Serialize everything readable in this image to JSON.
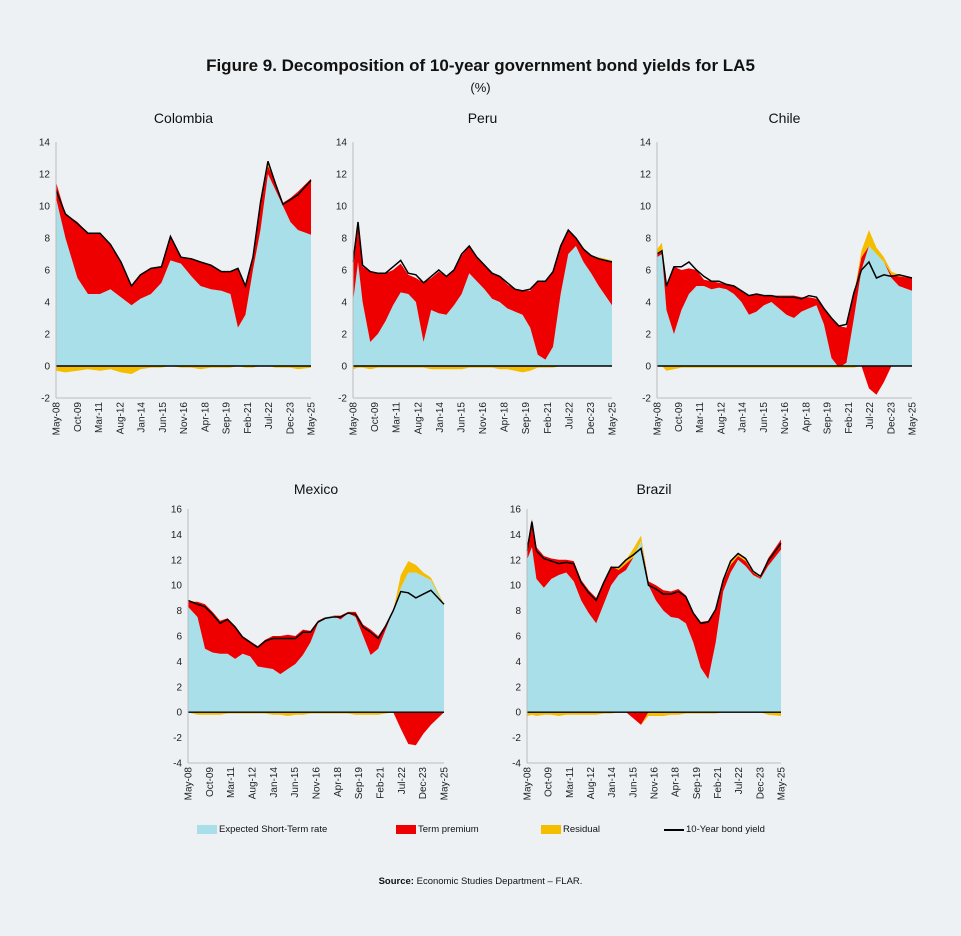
{
  "title": "Figure 9. Decomposition of 10-year government bond yields for LA5",
  "unit": "(%)",
  "legend": [
    {
      "label": "Expected Short-Term rate",
      "color": "#a8dfe9"
    },
    {
      "label": "Term premium",
      "color": "#ee0000"
    },
    {
      "label": "Residual",
      "color": "#f5bd00"
    },
    {
      "label": "10-Year bond yield",
      "color": "#000000"
    }
  ],
  "source_label": "Source:",
  "source_text": "Economic Studies Department – FLAR.",
  "chart_data": [
    {
      "type": "area",
      "title": "Colombia",
      "ylim": [
        -2,
        14
      ],
      "yticks": [
        -2,
        0,
        2,
        4,
        6,
        8,
        10,
        12,
        14
      ],
      "xticks": [
        "May-08",
        "Oct-09",
        "Mar-11",
        "Aug-12",
        "Jan-14",
        "Jun-15",
        "Nov-16",
        "Apr-18",
        "Sep-19",
        "Feb-21",
        "Jul-22",
        "Dec-23",
        "May-25"
      ],
      "x": [
        2008.37,
        2009.0,
        2009.8,
        2010.5,
        2011.3,
        2012.0,
        2012.7,
        2013.4,
        2014.0,
        2014.7,
        2015.4,
        2016.0,
        2016.7,
        2017.4,
        2018.0,
        2018.7,
        2019.4,
        2020.0,
        2020.5,
        2021.0,
        2021.5,
        2022.0,
        2022.5,
        2023.0,
        2023.5,
        2024.0,
        2024.5,
        2025.37
      ],
      "series": [
        {
          "name": "Expected Short-Term rate",
          "values": [
            10.5,
            8.0,
            5.5,
            4.5,
            4.5,
            4.8,
            4.3,
            3.8,
            4.2,
            4.5,
            5.2,
            6.6,
            6.4,
            5.6,
            5.0,
            4.8,
            4.7,
            4.5,
            2.4,
            3.2,
            6.0,
            8.5,
            12.0,
            11.0,
            10.0,
            9.0,
            8.5,
            8.2
          ]
        },
        {
          "name": "Term premium",
          "values": [
            1.0,
            1.5,
            3.5,
            3.8,
            3.8,
            2.8,
            2.2,
            1.2,
            1.5,
            1.6,
            1.0,
            1.5,
            0.4,
            1.1,
            1.5,
            1.5,
            1.2,
            1.4,
            3.7,
            1.8,
            0.8,
            1.7,
            0.5,
            0.5,
            0.2,
            1.5,
            2.4,
            3.5
          ]
        },
        {
          "name": "Residual",
          "values": [
            -0.3,
            -0.4,
            -0.3,
            -0.2,
            -0.3,
            -0.2,
            -0.4,
            -0.5,
            -0.2,
            -0.1,
            -0.1,
            0.0,
            -0.1,
            -0.1,
            -0.2,
            -0.1,
            -0.1,
            -0.1,
            0.0,
            -0.1,
            -0.1,
            0.0,
            0.3,
            -0.1,
            -0.1,
            -0.1,
            -0.2,
            -0.1
          ]
        },
        {
          "name": "10-Year bond yield",
          "values": [
            11.0,
            9.5,
            8.9,
            8.3,
            8.3,
            7.6,
            6.5,
            5.0,
            5.7,
            6.1,
            6.2,
            8.1,
            6.8,
            6.7,
            6.5,
            6.3,
            5.9,
            5.9,
            6.1,
            5.0,
            6.8,
            10.2,
            12.8,
            11.4,
            10.1,
            10.4,
            10.7,
            11.6
          ]
        }
      ]
    },
    {
      "type": "area",
      "title": "Peru",
      "ylim": [
        -2,
        14
      ],
      "yticks": [
        -2,
        0,
        2,
        4,
        6,
        8,
        10,
        12,
        14
      ],
      "xticks": [
        "May-08",
        "Oct-09",
        "Mar-11",
        "Aug-12",
        "Jan-14",
        "Jun-15",
        "Nov-16",
        "Apr-18",
        "Sep-19",
        "Feb-21",
        "Jul-22",
        "Dec-23",
        "May-25"
      ],
      "x": [
        2008.37,
        2008.7,
        2009.0,
        2009.5,
        2010.0,
        2010.5,
        2011.0,
        2011.5,
        2012.0,
        2012.5,
        2013.0,
        2013.5,
        2014.0,
        2014.5,
        2015.0,
        2015.5,
        2016.0,
        2016.5,
        2017.0,
        2017.5,
        2018.0,
        2018.5,
        2019.0,
        2019.5,
        2020.0,
        2020.5,
        2021.0,
        2021.5,
        2022.0,
        2022.5,
        2023.0,
        2023.5,
        2024.0,
        2024.5,
        2025.37
      ],
      "series": [
        {
          "name": "Expected Short-Term rate",
          "values": [
            4.0,
            6.5,
            4.0,
            1.5,
            2.0,
            2.8,
            3.8,
            4.6,
            4.5,
            4.0,
            1.5,
            3.5,
            3.3,
            3.2,
            3.8,
            4.5,
            5.8,
            5.3,
            4.8,
            4.2,
            4.0,
            3.6,
            3.4,
            3.2,
            2.4,
            0.7,
            0.4,
            1.2,
            4.5,
            7.0,
            7.5,
            6.5,
            5.8,
            5.0,
            3.8
          ]
        },
        {
          "name": "Term premium",
          "values": [
            2.5,
            2.5,
            2.2,
            4.4,
            3.8,
            3.0,
            2.2,
            1.8,
            1.2,
            1.5,
            3.7,
            2.0,
            2.6,
            2.4,
            2.2,
            2.4,
            1.7,
            1.5,
            1.5,
            1.6,
            1.6,
            1.5,
            1.4,
            1.5,
            2.3,
            4.6,
            4.9,
            4.7,
            3.0,
            1.5,
            0.5,
            0.8,
            1.1,
            1.7,
            2.7
          ]
        },
        {
          "name": "Residual",
          "values": [
            -0.2,
            -0.1,
            -0.1,
            -0.2,
            -0.1,
            -0.1,
            -0.1,
            -0.1,
            -0.1,
            -0.1,
            -0.1,
            -0.2,
            -0.2,
            -0.2,
            -0.2,
            -0.2,
            -0.1,
            -0.1,
            -0.1,
            -0.1,
            -0.2,
            -0.2,
            -0.3,
            -0.4,
            -0.3,
            -0.1,
            -0.1,
            -0.1,
            0.0,
            0.0,
            0.0,
            0.1,
            0.0,
            0.1,
            0.1
          ]
        },
        {
          "name": "10-Year bond yield",
          "values": [
            6.5,
            9.0,
            6.3,
            5.9,
            5.8,
            5.8,
            6.2,
            6.6,
            5.8,
            5.7,
            5.2,
            5.6,
            6.0,
            5.6,
            6.0,
            7.0,
            7.5,
            6.8,
            6.3,
            5.8,
            5.6,
            5.2,
            4.8,
            4.7,
            4.8,
            5.3,
            5.3,
            5.9,
            7.5,
            8.5,
            8.0,
            7.3,
            6.9,
            6.7,
            6.5
          ]
        }
      ]
    },
    {
      "type": "area",
      "title": "Chile",
      "ylim": [
        -2,
        14
      ],
      "yticks": [
        -2,
        0,
        2,
        4,
        6,
        8,
        10,
        12,
        14
      ],
      "xticks": [
        "May-08",
        "Oct-09",
        "Mar-11",
        "Aug-12",
        "Jan-14",
        "Jun-15",
        "Nov-16",
        "Apr-18",
        "Sep-19",
        "Feb-21",
        "Jul-22",
        "Dec-23",
        "May-25"
      ],
      "x": [
        2008.37,
        2008.7,
        2009.0,
        2009.5,
        2010.0,
        2010.5,
        2011.0,
        2011.5,
        2012.0,
        2012.5,
        2013.0,
        2013.5,
        2014.0,
        2014.5,
        2015.0,
        2015.5,
        2016.0,
        2016.5,
        2017.0,
        2017.5,
        2018.0,
        2018.5,
        2019.0,
        2019.5,
        2020.0,
        2020.5,
        2021.0,
        2021.5,
        2022.0,
        2022.5,
        2023.0,
        2023.5,
        2024.0,
        2024.5,
        2025.37
      ],
      "series": [
        {
          "name": "Expected Short-Term rate",
          "values": [
            6.8,
            7.0,
            3.5,
            2.0,
            3.5,
            4.5,
            5.0,
            5.0,
            4.8,
            4.9,
            4.8,
            4.5,
            4.0,
            3.2,
            3.4,
            3.8,
            4.0,
            3.6,
            3.2,
            3.0,
            3.4,
            3.6,
            3.8,
            2.6,
            0.5,
            -0.1,
            0.2,
            3.0,
            6.0,
            7.5,
            7.0,
            6.5,
            5.5,
            5.0,
            4.7
          ]
        },
        {
          "name": "Term premium",
          "values": [
            0.2,
            0.1,
            1.5,
            4.2,
            2.5,
            1.6,
            1.0,
            0.4,
            0.5,
            0.3,
            0.3,
            0.5,
            0.7,
            1.2,
            1.1,
            0.6,
            0.4,
            0.8,
            1.2,
            1.4,
            0.9,
            0.7,
            0.4,
            1.0,
            2.5,
            2.6,
            2.2,
            1.5,
            0.8,
            -1.4,
            -1.8,
            -1.0,
            0.2,
            0.6,
            0.8
          ]
        },
        {
          "name": "Residual",
          "values": [
            0.3,
            0.6,
            -0.3,
            -0.2,
            -0.1,
            -0.1,
            -0.1,
            -0.1,
            -0.1,
            -0.1,
            -0.1,
            -0.1,
            -0.1,
            -0.1,
            -0.1,
            -0.1,
            -0.1,
            -0.1,
            -0.1,
            -0.1,
            -0.1,
            -0.1,
            -0.1,
            -0.1,
            -0.1,
            -0.1,
            -0.1,
            -0.1,
            0.4,
            1.0,
            0.4,
            0.3,
            0.2,
            0.1,
            0.0
          ]
        },
        {
          "name": "10-Year bond yield",
          "values": [
            7.0,
            7.2,
            5.0,
            6.2,
            6.2,
            6.5,
            6.0,
            5.6,
            5.3,
            5.3,
            5.1,
            5.0,
            4.7,
            4.4,
            4.5,
            4.4,
            4.4,
            4.3,
            4.3,
            4.3,
            4.2,
            4.4,
            4.3,
            3.6,
            3.0,
            2.5,
            2.6,
            4.6,
            6.0,
            6.5,
            5.5,
            5.7,
            5.6,
            5.7,
            5.5
          ]
        }
      ]
    },
    {
      "type": "area",
      "title": "Mexico",
      "ylim": [
        -4,
        16
      ],
      "yticks": [
        -4,
        -2,
        0,
        2,
        4,
        6,
        8,
        10,
        12,
        14,
        16
      ],
      "xticks": [
        "May-08",
        "Oct-09",
        "Mar-11",
        "Aug-12",
        "Jan-14",
        "Jun-15",
        "Nov-16",
        "Apr-18",
        "Sep-19",
        "Feb-21",
        "Jul-22",
        "Dec-23",
        "May-25"
      ],
      "x": [
        2008.37,
        2009.0,
        2009.5,
        2010.0,
        2010.5,
        2011.0,
        2011.5,
        2012.0,
        2012.5,
        2013.0,
        2013.5,
        2014.0,
        2014.5,
        2015.0,
        2015.5,
        2016.0,
        2016.5,
        2017.0,
        2017.5,
        2018.0,
        2018.5,
        2019.0,
        2019.5,
        2020.0,
        2020.5,
        2021.0,
        2021.5,
        2022.0,
        2022.5,
        2023.0,
        2023.5,
        2024.0,
        2024.5,
        2025.37
      ],
      "series": [
        {
          "name": "Expected Short-Term rate",
          "values": [
            8.3,
            7.5,
            5.0,
            4.7,
            4.6,
            4.6,
            4.2,
            4.6,
            4.4,
            3.6,
            3.5,
            3.4,
            3.0,
            3.4,
            3.8,
            4.5,
            5.5,
            7.0,
            7.5,
            7.6,
            7.3,
            7.8,
            7.5,
            6.0,
            4.5,
            5.0,
            6.5,
            8.0,
            9.8,
            11.0,
            11.0,
            10.7,
            10.4,
            8.4
          ]
        },
        {
          "name": "Term premium",
          "values": [
            0.4,
            1.2,
            3.5,
            3.2,
            2.6,
            2.8,
            2.6,
            1.4,
            1.2,
            1.6,
            2.2,
            2.6,
            3.0,
            2.7,
            2.2,
            2.0,
            0.9,
            0.2,
            0.0,
            0.0,
            0.3,
            0.1,
            0.4,
            0.9,
            2.0,
            1.0,
            0.4,
            0.0,
            -1.3,
            -2.5,
            -2.6,
            -1.7,
            -1.0,
            0.0
          ]
        },
        {
          "name": "Residual",
          "values": [
            0.1,
            -0.2,
            -0.2,
            -0.2,
            -0.2,
            -0.1,
            -0.1,
            -0.1,
            -0.1,
            -0.1,
            -0.1,
            -0.2,
            -0.2,
            -0.3,
            -0.2,
            -0.2,
            -0.1,
            -0.1,
            -0.1,
            -0.1,
            -0.1,
            -0.1,
            -0.2,
            -0.2,
            -0.2,
            -0.2,
            -0.1,
            0.0,
            1.0,
            0.9,
            0.6,
            0.3,
            0.2,
            0.1
          ]
        },
        {
          "name": "10-Year bond yield",
          "values": [
            8.8,
            8.5,
            8.3,
            7.7,
            7.0,
            7.3,
            6.7,
            5.9,
            5.5,
            5.1,
            5.6,
            5.8,
            5.8,
            5.8,
            5.8,
            6.3,
            6.3,
            7.1,
            7.4,
            7.5,
            7.5,
            7.8,
            7.7,
            6.7,
            6.3,
            5.8,
            6.8,
            8.0,
            9.5,
            9.4,
            9.0,
            9.3,
            9.6,
            8.5
          ]
        }
      ]
    },
    {
      "type": "area",
      "title": "Brazil",
      "ylim": [
        -4,
        16
      ],
      "yticks": [
        -4,
        -2,
        0,
        2,
        4,
        6,
        8,
        10,
        12,
        14,
        16
      ],
      "xticks": [
        "May-08",
        "Oct-09",
        "Mar-11",
        "Aug-12",
        "Jan-14",
        "Jun-15",
        "Nov-16",
        "Apr-18",
        "Sep-19",
        "Feb-21",
        "Jul-22",
        "Dec-23",
        "May-25"
      ],
      "x": [
        2008.37,
        2008.7,
        2009.0,
        2009.5,
        2010.0,
        2010.5,
        2011.0,
        2011.5,
        2012.0,
        2012.5,
        2013.0,
        2013.5,
        2014.0,
        2014.5,
        2015.0,
        2015.5,
        2016.0,
        2016.5,
        2017.0,
        2017.5,
        2018.0,
        2018.5,
        2019.0,
        2019.5,
        2020.0,
        2020.5,
        2021.0,
        2021.5,
        2022.0,
        2022.5,
        2023.0,
        2023.5,
        2024.0,
        2024.5,
        2025.37
      ],
      "series": [
        {
          "name": "Expected Short-Term rate",
          "values": [
            12.0,
            13.0,
            10.5,
            9.8,
            10.5,
            10.8,
            11.0,
            10.3,
            8.8,
            7.8,
            7.0,
            8.5,
            10.0,
            10.8,
            11.2,
            12.2,
            13.5,
            10.0,
            8.8,
            8.0,
            7.5,
            7.4,
            7.0,
            5.5,
            3.5,
            2.6,
            5.5,
            9.5,
            11.0,
            12.0,
            11.5,
            10.8,
            10.5,
            11.5,
            12.8
          ]
        },
        {
          "name": "Term premium",
          "values": [
            1.0,
            2.2,
            2.5,
            2.5,
            1.6,
            1.2,
            1.0,
            1.6,
            1.6,
            1.8,
            2.0,
            1.8,
            1.5,
            0.4,
            0.5,
            -0.5,
            -1.0,
            0.3,
            1.2,
            1.6,
            2.0,
            2.3,
            2.2,
            2.4,
            3.6,
            4.6,
            2.7,
            0.8,
            0.6,
            0.3,
            0.4,
            0.2,
            0.1,
            0.6,
            0.8
          ]
        },
        {
          "name": "Residual",
          "values": [
            -0.3,
            -0.2,
            -0.3,
            -0.2,
            -0.2,
            -0.3,
            -0.2,
            -0.2,
            -0.2,
            -0.2,
            -0.2,
            -0.1,
            -0.1,
            0.2,
            0.3,
            0.7,
            0.4,
            -0.3,
            -0.3,
            -0.3,
            -0.2,
            -0.2,
            -0.1,
            -0.1,
            -0.1,
            -0.1,
            -0.1,
            0.1,
            0.3,
            0.2,
            0.2,
            0.1,
            0.1,
            -0.2,
            -0.3
          ]
        },
        {
          "name": "10-Year bond yield",
          "values": [
            12.7,
            15.0,
            12.7,
            12.1,
            11.9,
            11.7,
            11.8,
            11.7,
            10.2,
            9.4,
            8.8,
            10.2,
            11.4,
            11.4,
            12.0,
            12.4,
            12.9,
            10.0,
            9.7,
            9.3,
            9.3,
            9.5,
            9.1,
            7.8,
            7.0,
            7.1,
            8.1,
            10.4,
            11.9,
            12.5,
            12.1,
            11.1,
            10.7,
            11.9,
            13.3
          ]
        }
      ]
    }
  ]
}
